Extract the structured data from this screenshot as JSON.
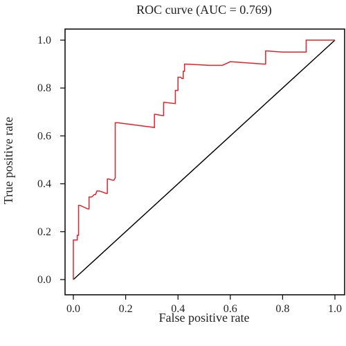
{
  "chart_data": {
    "type": "line",
    "title": "ROC curve (AUC = 0.769)",
    "xlabel": "False positive rate",
    "ylabel": "True positive rate",
    "xlim": [
      0,
      1
    ],
    "ylim": [
      0,
      1
    ],
    "x_ticks": [
      "0.0",
      "0.2",
      "0.4",
      "0.6",
      "0.8",
      "1.0"
    ],
    "y_ticks": [
      "0.0",
      "0.2",
      "0.4",
      "0.6",
      "0.8",
      "1.0"
    ],
    "grid": false,
    "colors": {
      "roc": "#e8202a",
      "diagonal": "#000000",
      "axis": "#000000"
    },
    "series": [
      {
        "values_xy": [
          [
            0.0,
            0.0
          ],
          [
            0.0,
            0.165
          ],
          [
            0.015,
            0.165
          ],
          [
            0.015,
            0.185
          ],
          [
            0.02,
            0.185
          ],
          [
            0.02,
            0.31
          ],
          [
            0.025,
            0.31
          ],
          [
            0.055,
            0.295
          ],
          [
            0.06,
            0.295
          ],
          [
            0.06,
            0.345
          ],
          [
            0.07,
            0.345
          ],
          [
            0.08,
            0.355
          ],
          [
            0.085,
            0.355
          ],
          [
            0.09,
            0.37
          ],
          [
            0.1,
            0.37
          ],
          [
            0.125,
            0.36
          ],
          [
            0.13,
            0.36
          ],
          [
            0.13,
            0.42
          ],
          [
            0.135,
            0.42
          ],
          [
            0.15,
            0.415
          ],
          [
            0.155,
            0.415
          ],
          [
            0.16,
            0.425
          ],
          [
            0.16,
            0.655
          ],
          [
            0.17,
            0.655
          ],
          [
            0.31,
            0.635
          ],
          [
            0.31,
            0.69
          ],
          [
            0.315,
            0.69
          ],
          [
            0.34,
            0.685
          ],
          [
            0.345,
            0.685
          ],
          [
            0.345,
            0.74
          ],
          [
            0.35,
            0.74
          ],
          [
            0.39,
            0.735
          ],
          [
            0.39,
            0.79
          ],
          [
            0.4,
            0.79
          ],
          [
            0.4,
            0.845
          ],
          [
            0.41,
            0.845
          ],
          [
            0.415,
            0.84
          ],
          [
            0.42,
            0.84
          ],
          [
            0.42,
            0.87
          ],
          [
            0.425,
            0.87
          ],
          [
            0.425,
            0.9
          ],
          [
            0.43,
            0.9
          ],
          [
            0.52,
            0.895
          ],
          [
            0.57,
            0.895
          ],
          [
            0.6,
            0.91
          ],
          [
            0.73,
            0.9
          ],
          [
            0.735,
            0.9
          ],
          [
            0.735,
            0.955
          ],
          [
            0.74,
            0.955
          ],
          [
            0.8,
            0.95
          ],
          [
            0.885,
            0.95
          ],
          [
            0.89,
            0.95
          ],
          [
            0.89,
            1.0
          ],
          [
            0.9,
            1.0
          ],
          [
            0.96,
            1.0
          ],
          [
            1.0,
            1.0
          ]
        ]
      },
      {
        "values_xy": [
          [
            0.0,
            0.0
          ],
          [
            1.0,
            1.0
          ]
        ]
      }
    ]
  }
}
